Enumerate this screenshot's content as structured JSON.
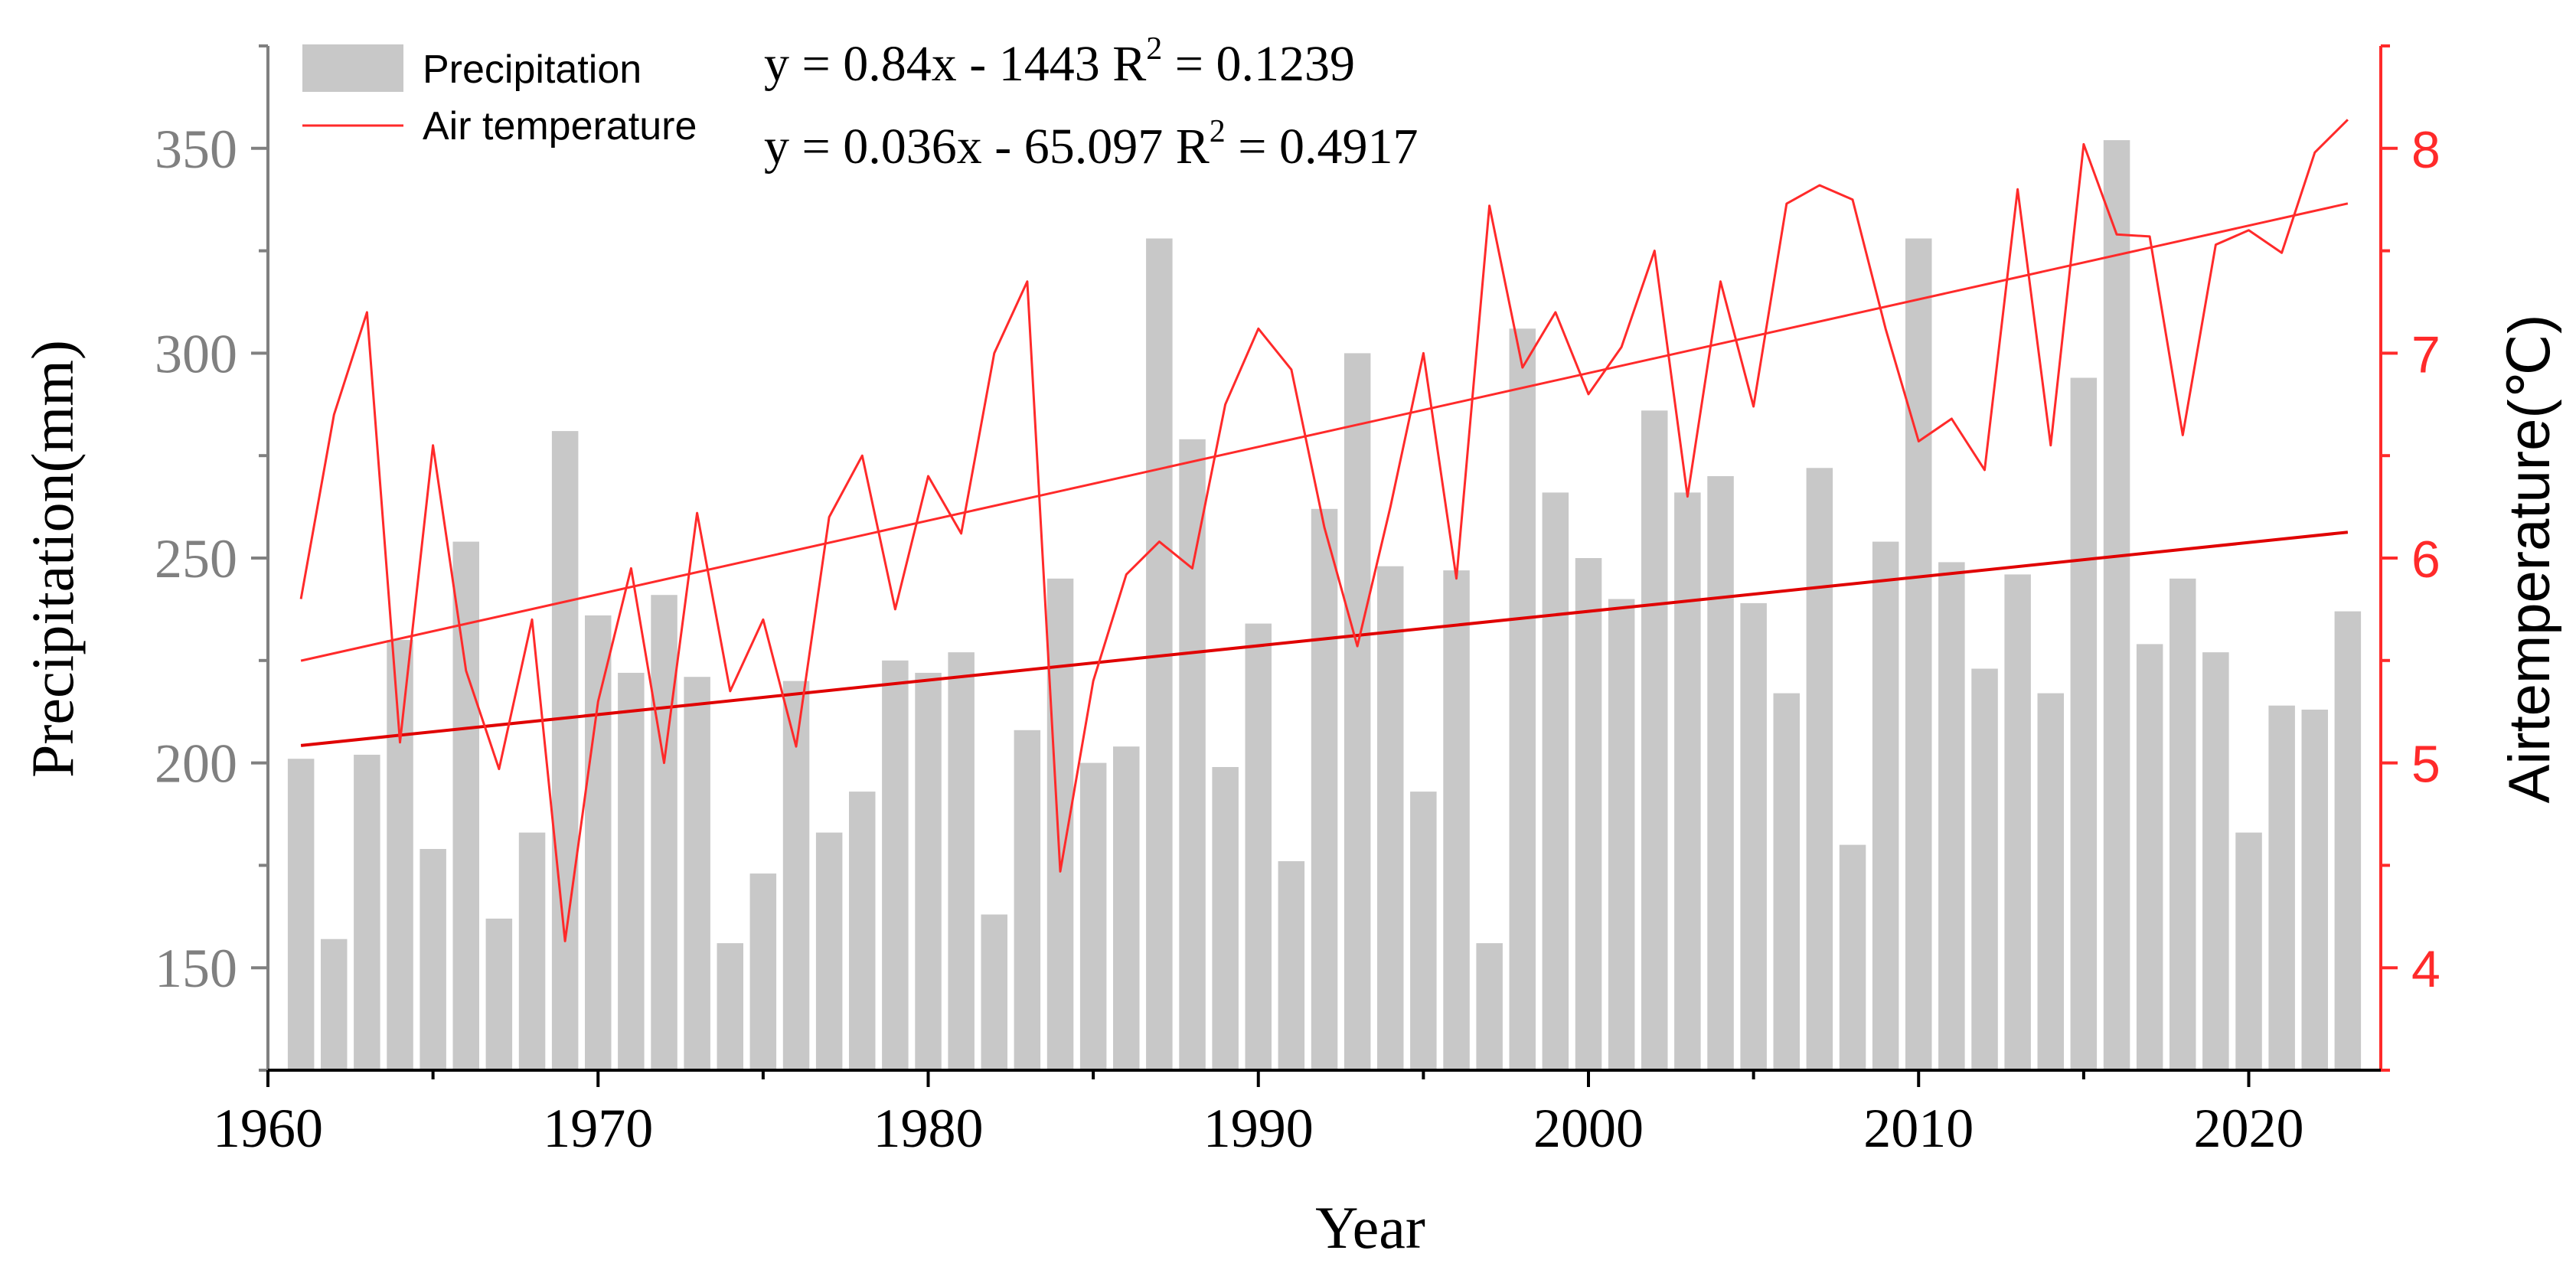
{
  "chart_data": {
    "type": "bar",
    "title": "",
    "xlabel": "Year",
    "ylabel_left": "Precipitation(mm)",
    "ylabel_right": "Airtemperature(℃)",
    "xlim": [
      1960,
      2024
    ],
    "ylim_left": [
      125,
      375
    ],
    "ylim_right": [
      3.5,
      8.5
    ],
    "x_ticks": [
      1960,
      1970,
      1980,
      1990,
      2000,
      2010,
      2020
    ],
    "x_tick_labels": [
      "1960",
      "1970",
      "1980",
      "1990",
      "2000",
      "2010",
      "2020"
    ],
    "y_left_ticks": [
      150,
      200,
      250,
      300,
      350
    ],
    "y_left_tick_labels": [
      "150",
      "200",
      "250",
      "300",
      "350"
    ],
    "y_right_ticks": [
      4,
      5,
      6,
      7,
      8
    ],
    "y_right_tick_labels": [
      "4",
      "5",
      "6",
      "7",
      "8"
    ],
    "years": [
      1961,
      1962,
      1963,
      1964,
      1965,
      1966,
      1967,
      1968,
      1969,
      1970,
      1971,
      1972,
      1973,
      1974,
      1975,
      1976,
      1977,
      1978,
      1979,
      1980,
      1981,
      1982,
      1983,
      1984,
      1985,
      1986,
      1987,
      1988,
      1989,
      1990,
      1991,
      1992,
      1993,
      1994,
      1995,
      1996,
      1997,
      1998,
      1999,
      2000,
      2001,
      2002,
      2003,
      2004,
      2005,
      2006,
      2007,
      2008,
      2009,
      2010,
      2011,
      2012,
      2013,
      2014,
      2015,
      2016,
      2017,
      2018,
      2019,
      2020,
      2021,
      2022,
      2023
    ],
    "series": [
      {
        "name": "Precipitation",
        "type": "bar",
        "axis": "left",
        "color": "#c8c8c8",
        "values": [
          201,
          157,
          202,
          230,
          179,
          254,
          162,
          183,
          281,
          236,
          222,
          241,
          221,
          156,
          173,
          220,
          183,
          193,
          225,
          222,
          227,
          163,
          208,
          245,
          200,
          204,
          328,
          279,
          199,
          234,
          176,
          262,
          300,
          248,
          193,
          247,
          156,
          306,
          266,
          250,
          240,
          286,
          266,
          270,
          239,
          217,
          272,
          180,
          254,
          328,
          249,
          223,
          246,
          217,
          294,
          352,
          229,
          245,
          227,
          183,
          214,
          213,
          237
        ]
      },
      {
        "name": "Air temperature",
        "type": "line",
        "axis": "right",
        "color": "#ff2a2a",
        "values": [
          5.8,
          6.7,
          7.2,
          5.1,
          6.55,
          5.45,
          4.97,
          5.7,
          4.13,
          5.3,
          5.95,
          5.0,
          6.22,
          5.35,
          5.7,
          5.08,
          6.2,
          6.5,
          5.75,
          6.4,
          6.12,
          7.0,
          7.35,
          4.47,
          5.4,
          5.92,
          6.08,
          5.95,
          6.75,
          7.12,
          6.92,
          6.15,
          5.57,
          6.25,
          7.0,
          5.9,
          7.72,
          6.93,
          7.2,
          6.8,
          7.03,
          7.5,
          6.3,
          7.35,
          6.74,
          7.73,
          7.82,
          7.75,
          7.12,
          6.57,
          6.68,
          6.43,
          7.8,
          6.55,
          8.02,
          7.58,
          7.57,
          6.6,
          7.53,
          7.6,
          7.49,
          7.98,
          8.14
        ]
      }
    ],
    "trendlines": [
      {
        "label": "y = 0.84x - 1443 R² = 0.1239",
        "series": "Precipitation",
        "axis": "left",
        "slope": 0.84,
        "intercept": -1443,
        "r2": 0.1239
      },
      {
        "label": "y = 0.036x - 65.097 R² = 0.4917",
        "series": "Air temperature",
        "axis": "right",
        "slope": 0.036,
        "intercept": -65.097,
        "r2": 0.4917
      }
    ],
    "legend": {
      "position": "top-left",
      "entries": [
        {
          "label": "Precipitation",
          "symbol": "bar",
          "color": "#c8c8c8"
        },
        {
          "label": "Air temperature",
          "symbol": "line",
          "color": "#ff2a2a"
        }
      ]
    },
    "equations": {
      "eq1": {
        "prefix": "y = 0.84x - 1443 R",
        "sup": "2",
        "suffix": " = 0.1239"
      },
      "eq2": {
        "prefix": "y = 0.036x - 65.097 R",
        "sup": "2",
        "suffix": " = 0.4917"
      }
    },
    "colors": {
      "bar": "#c8c8c8",
      "temperature": "#ff2a2a",
      "left_axis": "#808080",
      "right_axis": "#ff2a2a",
      "bottom_axis": "#000000"
    }
  }
}
